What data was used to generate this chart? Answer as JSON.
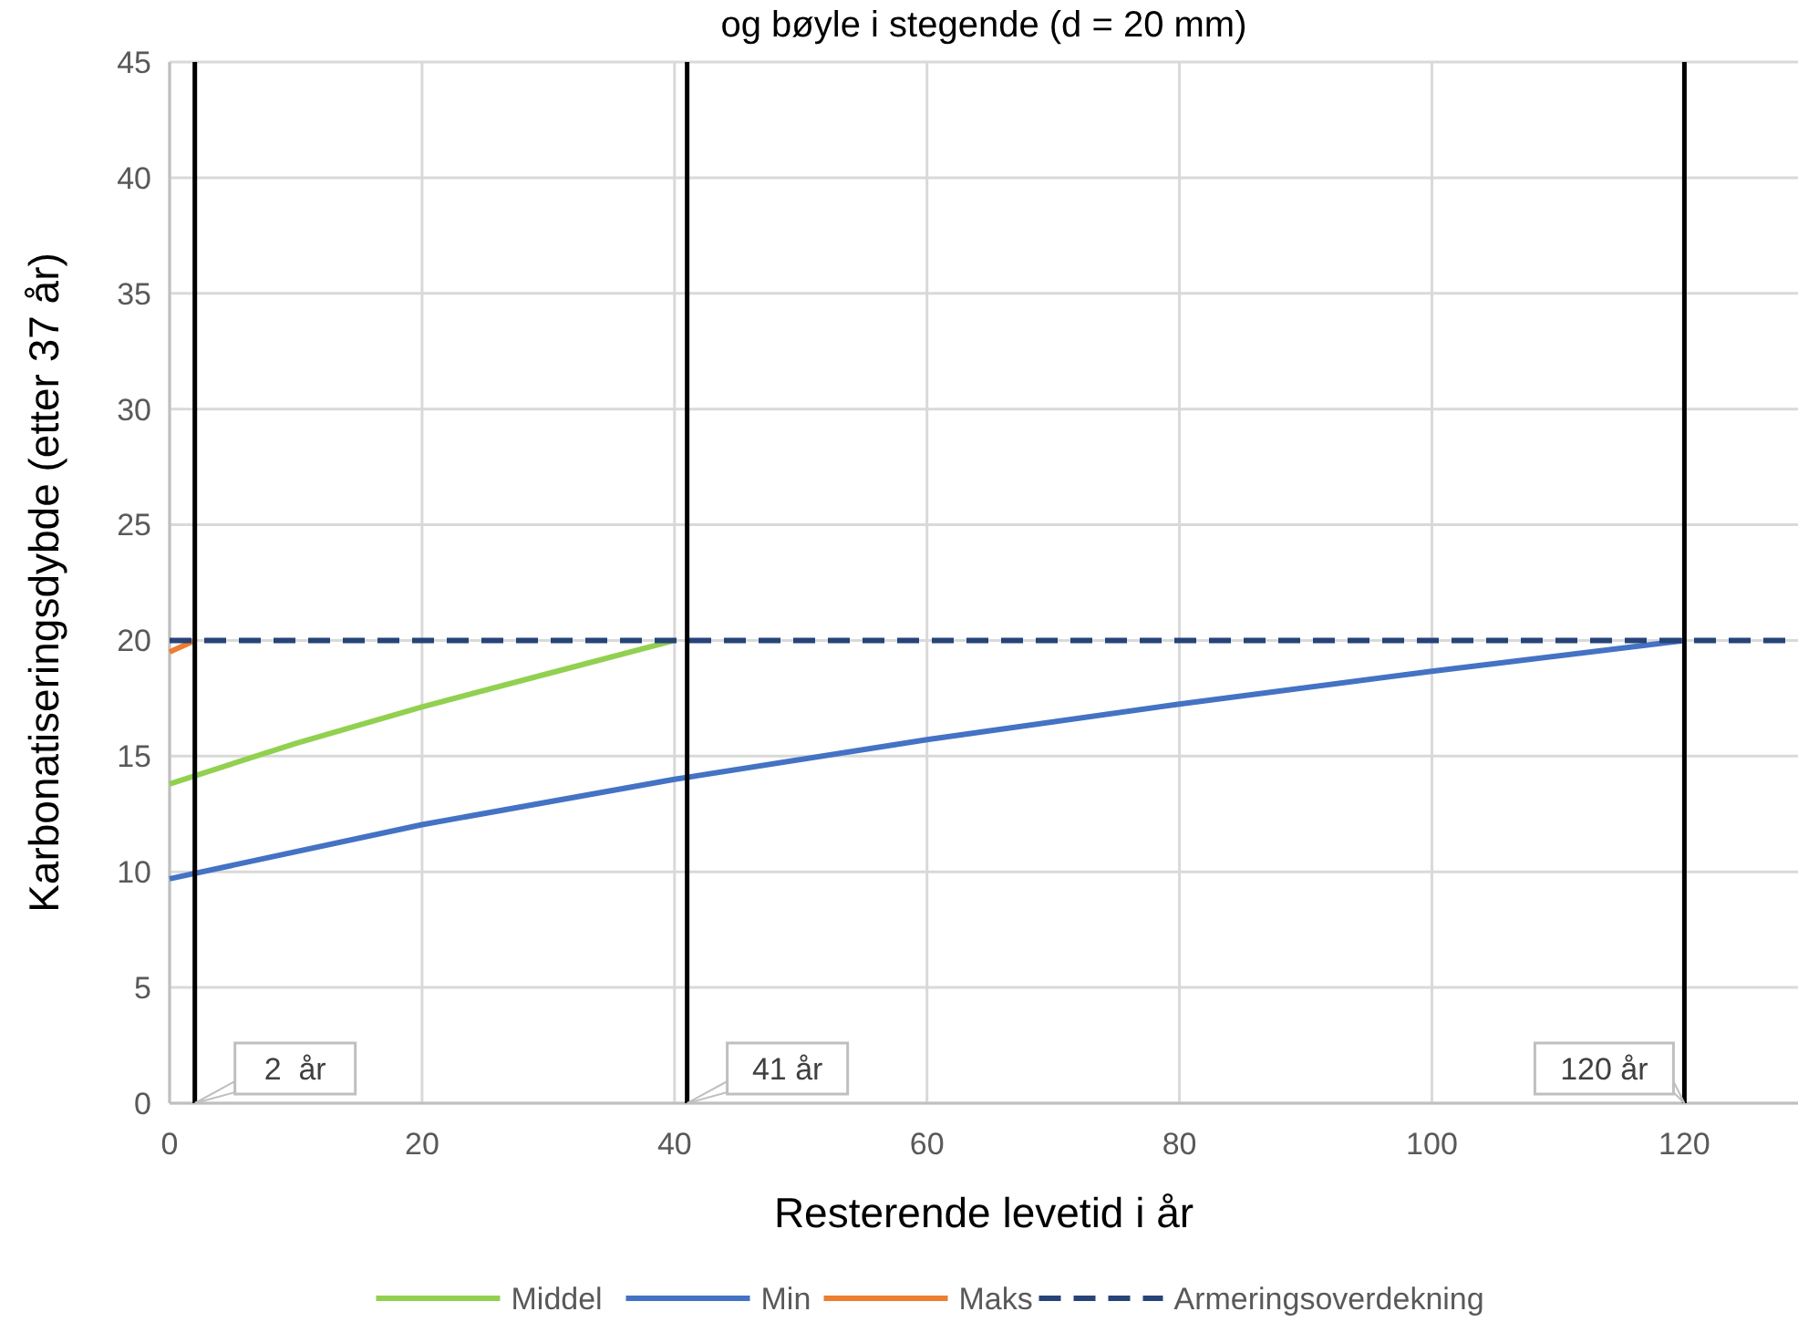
{
  "chart_data": {
    "type": "line",
    "title": "og bøyle i stegende (d = 20 mm)",
    "xlabel": "Resterende levetid i år",
    "ylabel": "Karbonatiseringsdybde (etter 37 år)",
    "xlim": [
      0,
      129
    ],
    "xticks": [
      0,
      20,
      40,
      60,
      80,
      100,
      120
    ],
    "ylim": [
      0,
      45
    ],
    "yticks": [
      0,
      5,
      10,
      15,
      20,
      25,
      30,
      35,
      40,
      45
    ],
    "grid": true,
    "legend": "bottom",
    "series": [
      {
        "name": "Middel",
        "color": "#92d050",
        "x": [
          0,
          10,
          20,
          30,
          40
        ],
        "values": [
          13.8,
          15.55,
          17.13,
          18.57,
          20
        ]
      },
      {
        "name": "Min",
        "color": "#4472c4",
        "x": [
          0,
          20,
          40,
          60,
          80,
          100,
          120
        ],
        "values": [
          9.7,
          12.04,
          14,
          15.71,
          17.25,
          18.67,
          20
        ]
      },
      {
        "name": "Maks",
        "color": "#ed7d31",
        "x": [
          0,
          2
        ],
        "values": [
          19.5,
          20
        ]
      },
      {
        "name": "Armeringsoverdekning",
        "color": "#264478",
        "x": [
          0,
          129
        ],
        "values": [
          20,
          20
        ],
        "line_style": "dashed"
      }
    ],
    "ref_lines": [
      {
        "axis": "x",
        "value": 2,
        "label": "2  år",
        "color": "#000000"
      },
      {
        "axis": "x",
        "value": 41,
        "label": "41 år",
        "color": "#000000"
      },
      {
        "axis": "x",
        "value": 120,
        "label": "120 år",
        "color": "#000000"
      }
    ]
  }
}
